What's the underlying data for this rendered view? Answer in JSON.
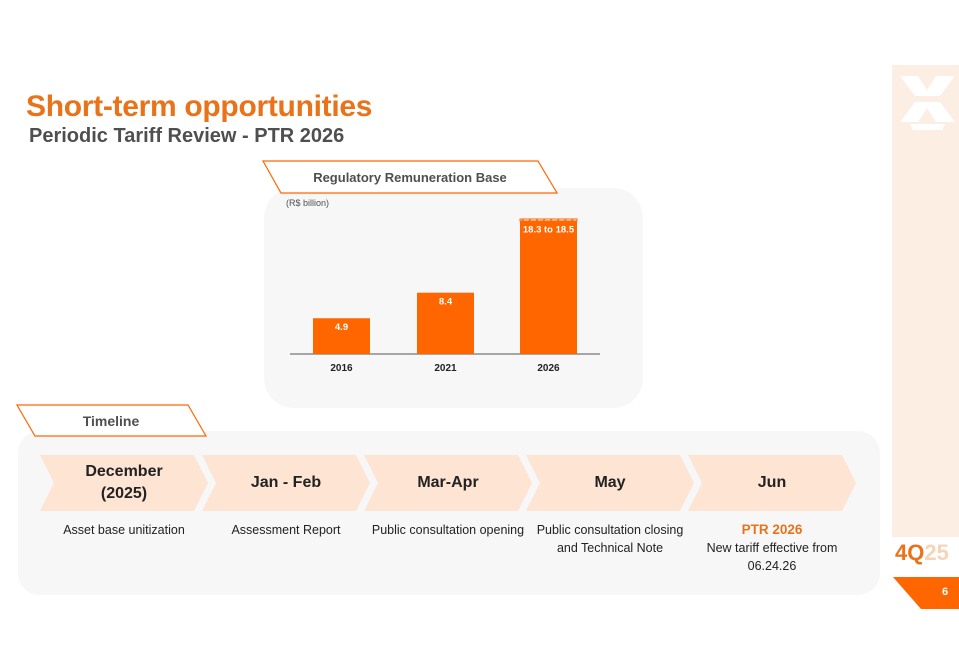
{
  "header": {
    "title": "Short-term opportunities",
    "subtitle": "Periodic Tariff Review - PTR 2026"
  },
  "branding": {
    "period_prefix": "4Q",
    "period_suffix": "25",
    "page_number": "6",
    "accent_color": "#ff6600",
    "light_accent": "#fde4d3"
  },
  "chart_section": {
    "title": "Regulatory Remuneration Base",
    "unit": "(R$ billion)"
  },
  "chart_data": {
    "type": "bar",
    "title": "Regulatory Remuneration Base",
    "ylabel": "(R$ billion)",
    "categories": [
      "2016",
      "2021",
      "2026"
    ],
    "values": [
      4.9,
      8.4,
      18.5
    ],
    "range_low": [
      4.9,
      8.4,
      18.3
    ],
    "data_labels": [
      "4.9",
      "8.4",
      "18.3 to 18.5"
    ],
    "ylim": [
      0,
      18.5
    ],
    "grid": false,
    "legend": "none"
  },
  "timeline": {
    "label": "Timeline",
    "steps": [
      {
        "label": "December\n(2025)",
        "desc": "Asset base unitization",
        "highlight": ""
      },
      {
        "label": "Jan - Feb",
        "desc": "Assessment Report",
        "highlight": ""
      },
      {
        "label": "Mar-Apr",
        "desc": "Public consultation opening",
        "highlight": ""
      },
      {
        "label": "May",
        "desc": "Public consultation closing and Technical Note",
        "highlight": ""
      },
      {
        "label": "Jun",
        "desc": "New tariff effective from 06.24.26",
        "highlight": "PTR 2026"
      }
    ]
  }
}
